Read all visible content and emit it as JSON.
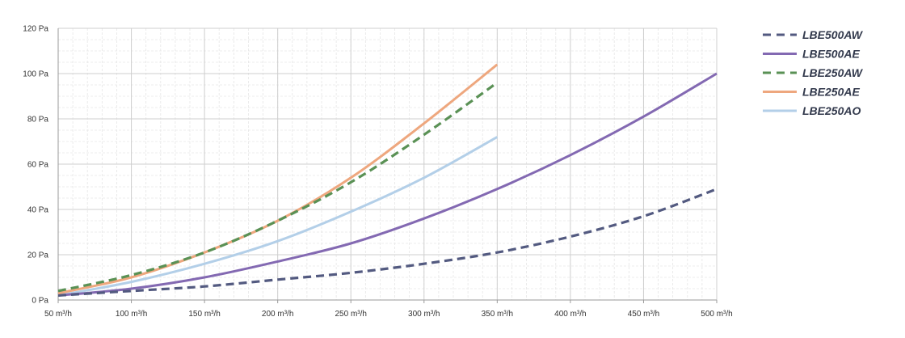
{
  "chart_data": {
    "type": "line",
    "title": "",
    "xlabel": "",
    "ylabel": "",
    "x_ticks": [
      "50 m³/h",
      "100 m³/h",
      "150 m³/h",
      "200 m³/h",
      "250 m³/h",
      "300 m³/h",
      "350 m³/h",
      "400 m³/h",
      "450 m³/h",
      "500 m³/h"
    ],
    "y_ticks": [
      "0 Pa",
      "20 Pa",
      "40 Pa",
      "60 Pa",
      "80 Pa",
      "100 Pa",
      "120 Pa"
    ],
    "xlim": [
      50,
      500
    ],
    "ylim": [
      0,
      120
    ],
    "grid": true,
    "legend_position": "right",
    "series": [
      {
        "name": "LBE500AW",
        "color": "#535a80",
        "style": "dashed",
        "x": [
          50,
          100,
          150,
          200,
          250,
          300,
          350,
          400,
          450,
          500
        ],
        "y": [
          2,
          4,
          6,
          9,
          12,
          16,
          21,
          28,
          37,
          49
        ]
      },
      {
        "name": "LBE500AE",
        "color": "#8369b2",
        "style": "solid",
        "x": [
          50,
          100,
          150,
          200,
          250,
          300,
          350,
          400,
          450,
          500
        ],
        "y": [
          2,
          5,
          10,
          17,
          25,
          36,
          49,
          64,
          81,
          100
        ]
      },
      {
        "name": "LBE250AW",
        "color": "#5a9155",
        "style": "dashed",
        "x": [
          50,
          100,
          150,
          200,
          250,
          300,
          350
        ],
        "y": [
          4,
          11,
          21,
          35,
          52,
          73,
          96
        ]
      },
      {
        "name": "LBE250AE",
        "color": "#eea77e",
        "style": "solid",
        "x": [
          50,
          100,
          150,
          200,
          250,
          300,
          350
        ],
        "y": [
          3,
          10,
          21,
          35,
          54,
          78,
          104
        ]
      },
      {
        "name": "LBE250AO",
        "color": "#b3cfe8",
        "style": "solid",
        "x": [
          50,
          100,
          150,
          200,
          250,
          300,
          350
        ],
        "y": [
          2,
          8,
          16,
          26,
          39,
          54,
          72
        ]
      }
    ]
  }
}
